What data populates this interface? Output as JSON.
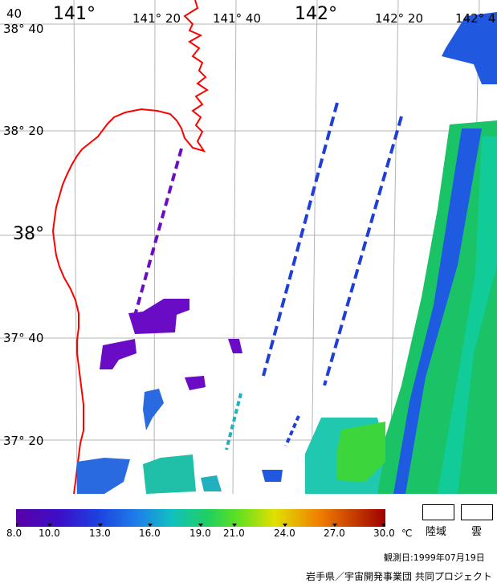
{
  "map": {
    "lon_labels": [
      {
        "text": "141°",
        "size": "big"
      },
      {
        "text": "141° 20",
        "size": "normal"
      },
      {
        "text": "141° 40",
        "size": "normal"
      },
      {
        "text": "142°",
        "size": "big"
      },
      {
        "text": "142° 20",
        "size": "normal"
      },
      {
        "text": "142° 4",
        "size": "normal"
      }
    ],
    "lat_labels": [
      {
        "text": "38° 40",
        "size": "normal"
      },
      {
        "text": "38° 20",
        "size": "normal"
      },
      {
        "text": "38°",
        "size": "big"
      },
      {
        "text": "37° 40",
        "size": "normal"
      },
      {
        "text": "37° 20",
        "size": "normal"
      }
    ],
    "corner_label": "40",
    "coastline_color": "#ff0000",
    "grid_color": "#b4b4b4"
  },
  "colorbar": {
    "unit": "℃",
    "ticks": [
      "8.0",
      "10.0",
      "13.0",
      "16.0",
      "19.0",
      "21.0",
      "24.0",
      "27.0",
      "30.0"
    ],
    "min": 8.0,
    "max": 30.0
  },
  "legend": {
    "land": "陸域",
    "cloud": "雲"
  },
  "observation_date": "観測日:1999年07月19日",
  "credit": "岩手県／宇宙開発事業団 共同プロジェクト"
}
